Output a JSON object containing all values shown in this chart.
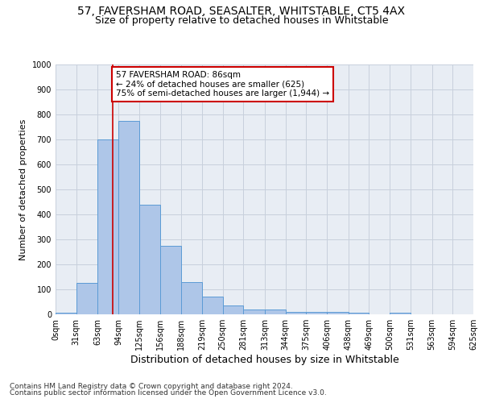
{
  "title1": "57, FAVERSHAM ROAD, SEASALTER, WHITSTABLE, CT5 4AX",
  "title2": "Size of property relative to detached houses in Whitstable",
  "xlabel": "Distribution of detached houses by size in Whitstable",
  "ylabel": "Number of detached properties",
  "bin_edges": [
    0,
    31,
    63,
    94,
    125,
    156,
    188,
    219,
    250,
    281,
    313,
    344,
    375,
    406,
    438,
    469,
    500,
    531,
    563,
    594,
    625
  ],
  "bar_heights": [
    5,
    125,
    700,
    775,
    440,
    275,
    130,
    70,
    35,
    20,
    20,
    10,
    10,
    10,
    5,
    0,
    5,
    0,
    0,
    0
  ],
  "bar_color": "#aec6e8",
  "bar_edge_color": "#5b9bd5",
  "grid_color": "#c8d0dc",
  "bg_color": "#e8edf4",
  "vline_x": 86,
  "vline_color": "#cc0000",
  "annotation_text": "57 FAVERSHAM ROAD: 86sqm\n← 24% of detached houses are smaller (625)\n75% of semi-detached houses are larger (1,944) →",
  "annotation_box_color": "#ffffff",
  "annotation_box_edge_color": "#cc0000",
  "ylim": [
    0,
    1000
  ],
  "yticks": [
    0,
    100,
    200,
    300,
    400,
    500,
    600,
    700,
    800,
    900,
    1000
  ],
  "footer1": "Contains HM Land Registry data © Crown copyright and database right 2024.",
  "footer2": "Contains public sector information licensed under the Open Government Licence v3.0.",
  "title_fontsize": 10,
  "subtitle_fontsize": 9,
  "tick_fontsize": 7,
  "ylabel_fontsize": 8,
  "xlabel_fontsize": 9,
  "annotation_fontsize": 7.5,
  "footer_fontsize": 6.5
}
